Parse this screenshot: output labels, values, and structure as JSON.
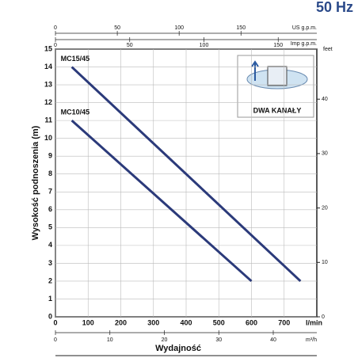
{
  "chart_data": {
    "type": "line",
    "frequency": "50 Hz",
    "xlabel": "Wydajność",
    "xunit": "l/min",
    "ylabel": "Wysokość podnoszenia (m)",
    "xlim": [
      0,
      800
    ],
    "xticks": [
      0,
      100,
      200,
      300,
      400,
      500,
      600,
      700
    ],
    "ylim": [
      0,
      15
    ],
    "yticks": [
      0,
      1,
      2,
      3,
      4,
      5,
      6,
      7,
      8,
      9,
      10,
      11,
      12,
      13,
      14,
      15
    ],
    "y2label": "feet",
    "y2lim": [
      0,
      49.2
    ],
    "y2ticks": [
      0,
      10,
      20,
      30,
      40
    ],
    "top_axes": [
      {
        "label": "US g.p.m.",
        "lim": [
          0,
          211.3
        ],
        "ticks": [
          0,
          50,
          100,
          150
        ]
      },
      {
        "label": "Imp g.p.m.",
        "lim": [
          0,
          176
        ],
        "ticks": [
          0,
          50,
          100,
          150
        ]
      }
    ],
    "bottom_axis": {
      "label": "m³/h",
      "lim": [
        0,
        48
      ],
      "ticks": [
        0,
        10,
        20,
        30,
        40
      ]
    },
    "grid": true,
    "inset_label": "DWA KANAŁY",
    "series": [
      {
        "name": "MC15/45",
        "color": "#2b3a7a",
        "x": [
          50,
          750
        ],
        "values": [
          14,
          2
        ]
      },
      {
        "name": "MC10/45",
        "color": "#2b3a7a",
        "x": [
          50,
          600
        ],
        "values": [
          11,
          2
        ]
      }
    ]
  }
}
